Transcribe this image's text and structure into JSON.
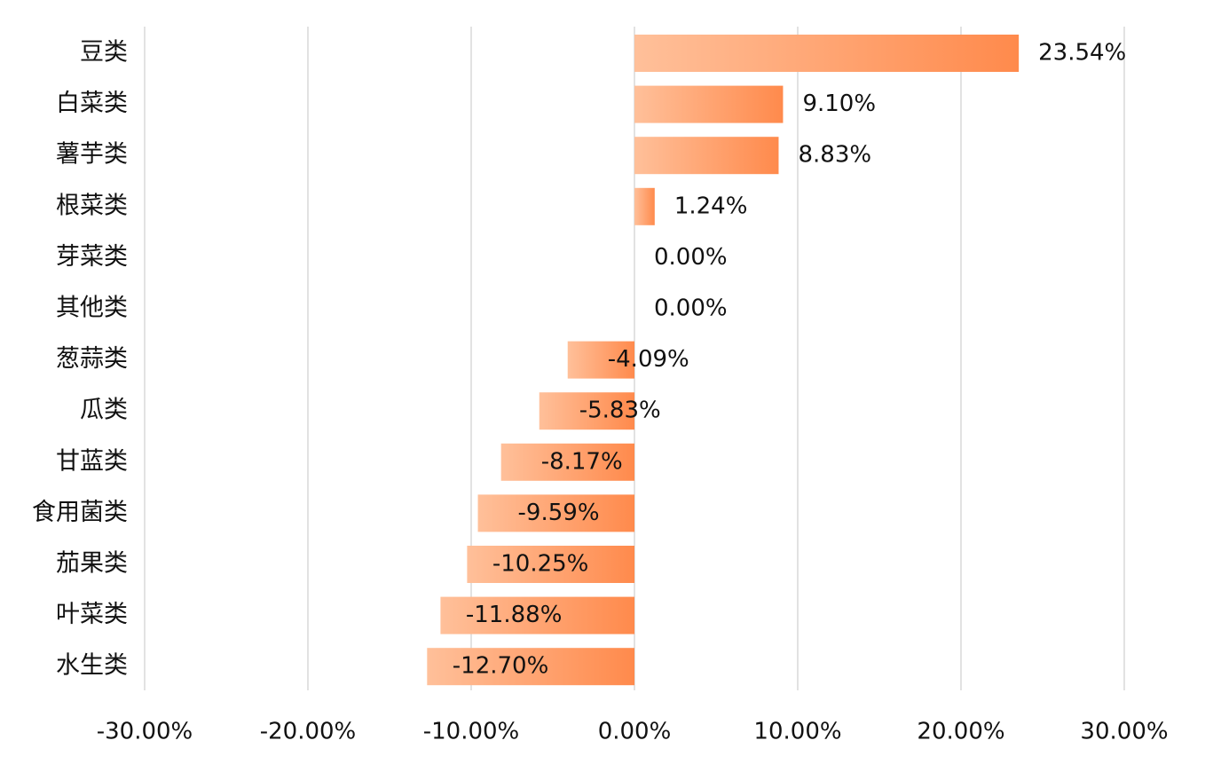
{
  "chart_data": {
    "type": "bar",
    "orientation": "horizontal",
    "categories": [
      "豆类",
      "白菜类",
      "薯芋类",
      "根菜类",
      "芽菜类",
      "其他类",
      "葱蒜类",
      "瓜类",
      "甘蓝类",
      "食用菌类",
      "茄果类",
      "叶菜类",
      "水生类"
    ],
    "values": [
      23.54,
      9.1,
      8.83,
      1.24,
      0.0,
      0.0,
      -4.09,
      -5.83,
      -8.17,
      -9.59,
      -10.25,
      -11.88,
      -12.7
    ],
    "value_labels": [
      "23.54%",
      "9.10%",
      "8.83%",
      "1.24%",
      "0.00%",
      "0.00%",
      "-4.09%",
      "-5.83%",
      "-8.17%",
      "-9.59%",
      "-10.25%",
      "-11.88%",
      "-12.70%"
    ],
    "xlim": [
      -30,
      30
    ],
    "xticks": [
      -30,
      -20,
      -10,
      0,
      10,
      20,
      30
    ],
    "xtick_labels": [
      "-30.00%",
      "-20.00%",
      "-10.00%",
      "0.00%",
      "10.00%",
      "20.00%",
      "30.00%"
    ],
    "grid": true,
    "legend": "none",
    "bar_gradient": [
      "#ffc09a",
      "#ff8a4c"
    ],
    "title": "",
    "xlabel": "",
    "ylabel": ""
  }
}
